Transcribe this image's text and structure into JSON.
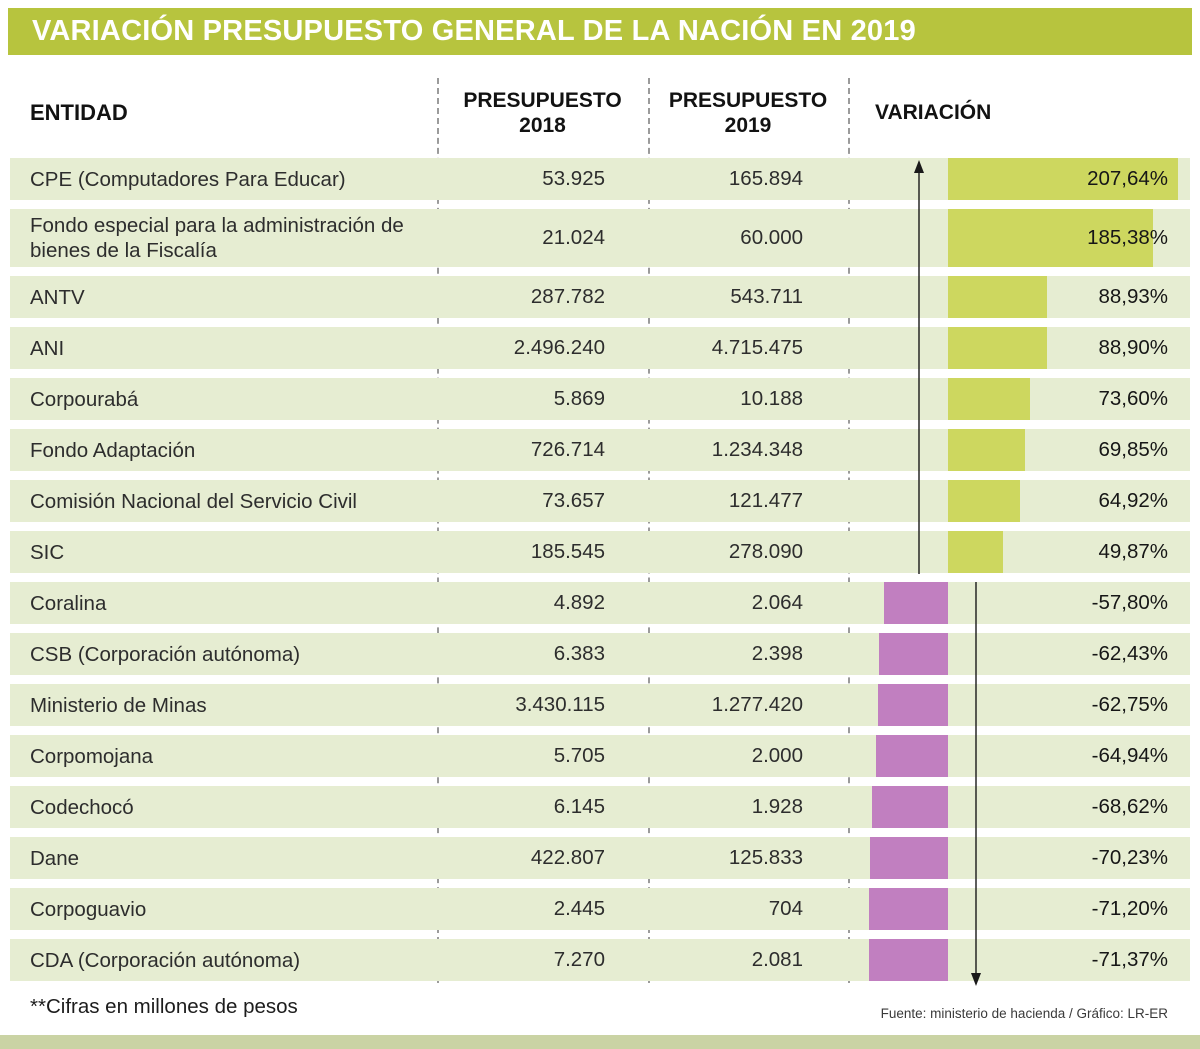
{
  "title": "VARIACIÓN PRESUPUESTO GENERAL DE LA NACIÓN EN 2019",
  "columns": {
    "entity": "ENTIDAD",
    "budget2018_line1": "PRESUPUESTO",
    "budget2018_line2": "2018",
    "budget2019_line1": "PRESUPUESTO",
    "budget2019_line2": "2019",
    "variation": "VARIACIÓN"
  },
  "footer": {
    "note": "**Cifras en millones de pesos",
    "source": "Fuente: ministerio de hacienda / Gráfico: LR-ER"
  },
  "colors": {
    "title_bg": "#b7c43e",
    "row_bg": "#e6edd2",
    "positive_bar": "#cdd75f",
    "negative_bar": "#c17fc0",
    "bottom_strip": "#cad3a4"
  },
  "chart_data": {
    "type": "bar",
    "orientation": "horizontal",
    "title": "VARIACIÓN PRESUPUESTO GENERAL DE LA NACIÓN EN 2019",
    "unit": "percent variation",
    "columns": [
      "ENTIDAD",
      "PRESUPUESTO 2018",
      "PRESUPUESTO 2019",
      "VARIACIÓN"
    ],
    "note": "**Cifras en millones de pesos",
    "source": "Fuente: ministerio de hacienda / Gráfico: LR-ER",
    "rows": [
      {
        "entity": "CPE (Computadores Para Educar)",
        "budget_2018": "53.925",
        "budget_2019": "165.894",
        "variation": "207,64%",
        "variation_value": 207.64
      },
      {
        "entity": "Fondo especial para la administración de bienes de la Fiscalía",
        "budget_2018": "21.024",
        "budget_2019": "60.000",
        "variation": "185,38%",
        "variation_value": 185.38,
        "tall": true
      },
      {
        "entity": "ANTV",
        "budget_2018": "287.782",
        "budget_2019": "543.711",
        "variation": "88,93%",
        "variation_value": 88.93
      },
      {
        "entity": "ANI",
        "budget_2018": "2.496.240",
        "budget_2019": "4.715.475",
        "variation": "88,90%",
        "variation_value": 88.9
      },
      {
        "entity": "Corpourabá",
        "budget_2018": "5.869",
        "budget_2019": "10.188",
        "variation": "73,60%",
        "variation_value": 73.6
      },
      {
        "entity": "Fondo Adaptación",
        "budget_2018": "726.714",
        "budget_2019": "1.234.348",
        "variation": "69,85%",
        "variation_value": 69.85
      },
      {
        "entity": "Comisión Nacional del Servicio Civil",
        "budget_2018": "73.657",
        "budget_2019": "121.477",
        "variation": "64,92%",
        "variation_value": 64.92
      },
      {
        "entity": "SIC",
        "budget_2018": "185.545",
        "budget_2019": "278.090",
        "variation": "49,87%",
        "variation_value": 49.87
      },
      {
        "entity": "Coralina",
        "budget_2018": "4.892",
        "budget_2019": "2.064",
        "variation": "-57,80%",
        "variation_value": -57.8
      },
      {
        "entity": "CSB (Corporación autónoma)",
        "budget_2018": "6.383",
        "budget_2019": "2.398",
        "variation": "-62,43%",
        "variation_value": -62.43
      },
      {
        "entity": "Ministerio de Minas",
        "budget_2018": "3.430.115",
        "budget_2019": "1.277.420",
        "variation": "-62,75%",
        "variation_value": -62.75
      },
      {
        "entity": "Corpomojana",
        "budget_2018": "5.705",
        "budget_2019": "2.000",
        "variation": "-64,94%",
        "variation_value": -64.94
      },
      {
        "entity": "Codechocó",
        "budget_2018": "6.145",
        "budget_2019": "1.928",
        "variation": "-68,62%",
        "variation_value": -68.62
      },
      {
        "entity": "Dane",
        "budget_2018": "422.807",
        "budget_2019": "125.833",
        "variation": "-70,23%",
        "variation_value": -70.23
      },
      {
        "entity": "Corpoguavio",
        "budget_2018": "2.445",
        "budget_2019": "704",
        "variation": "-71,20%",
        "variation_value": -71.2
      },
      {
        "entity": "CDA (Corporación autónoma)",
        "budget_2018": "7.270",
        "budget_2019": "2.081",
        "variation": "-71,37%",
        "variation_value": -71.37
      }
    ]
  }
}
